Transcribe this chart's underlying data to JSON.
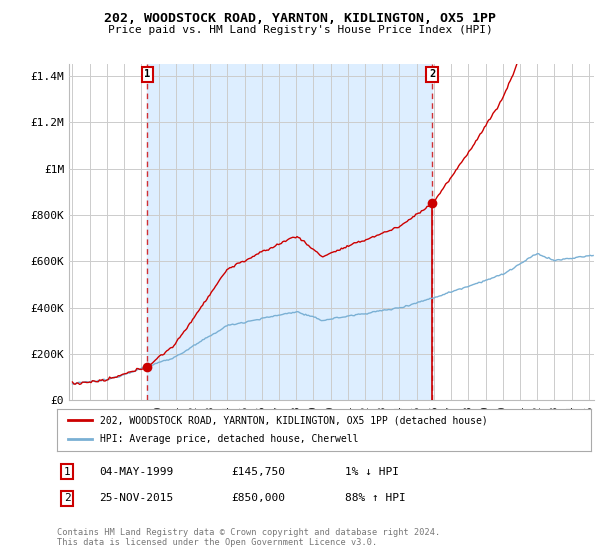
{
  "title": "202, WOODSTOCK ROAD, YARNTON, KIDLINGTON, OX5 1PP",
  "subtitle": "Price paid vs. HM Land Registry's House Price Index (HPI)",
  "ylabel_ticks": [
    "£0",
    "£200K",
    "£400K",
    "£600K",
    "£800K",
    "£1M",
    "£1.2M",
    "£1.4M"
  ],
  "ytick_values": [
    0,
    200000,
    400000,
    600000,
    800000,
    1000000,
    1200000,
    1400000
  ],
  "ylim": [
    0,
    1450000
  ],
  "xlim_start": 1994.8,
  "xlim_end": 2025.3,
  "sale1_year": 1999.35,
  "sale1_price": 145750,
  "sale2_year": 2015.9,
  "sale2_price": 850000,
  "legend_property_label": "202, WOODSTOCK ROAD, YARNTON, KIDLINGTON, OX5 1PP (detached house)",
  "legend_hpi_label": "HPI: Average price, detached house, Cherwell",
  "line_color_property": "#cc0000",
  "line_color_hpi": "#7ab0d4",
  "shade_color": "#ddeeff",
  "dashed_color": "#cc0000",
  "background_color": "#ffffff",
  "grid_color": "#cccccc"
}
